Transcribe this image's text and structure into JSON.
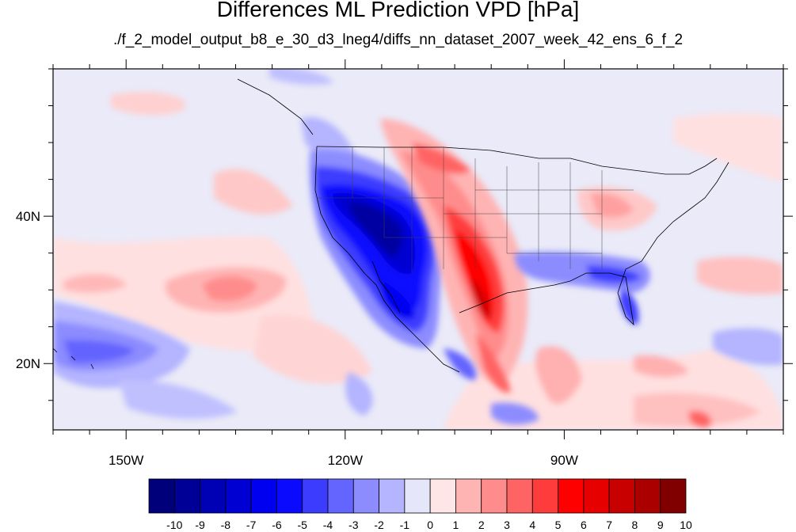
{
  "title": "Differences ML Prediction VPD [hPa]",
  "subtitle": "./f_2_model_output_b8_e_30_d3_lneg4/diffs_nn_dataset_2007_week_42_ens_6_f_2",
  "map": {
    "lon_range": [
      -160,
      -60
    ],
    "lat_range": [
      11,
      60
    ],
    "lon_ticks": [
      {
        "value": -150,
        "label": "150W"
      },
      {
        "value": -120,
        "label": "120W"
      },
      {
        "value": -90,
        "label": "90W"
      }
    ],
    "lat_ticks": [
      {
        "value": 40,
        "label": "40N"
      },
      {
        "value": 20,
        "label": "20N"
      }
    ],
    "background_color": "#eaeaf8"
  },
  "colorbar": {
    "labels": [
      "-10",
      "-9",
      "-8",
      "-7",
      "-6",
      "-5",
      "-4",
      "-3",
      "-2",
      "-1",
      "0",
      "1",
      "2",
      "3",
      "4",
      "5",
      "6",
      "7",
      "8",
      "9",
      "10"
    ],
    "colors": [
      "#00007a",
      "#000096",
      "#0000b4",
      "#0000d2",
      "#0000f0",
      "#0a0aff",
      "#3c3cff",
      "#6464ff",
      "#8c8cff",
      "#b4b4ff",
      "#e6e6fa",
      "#ffe6e6",
      "#ffb4b4",
      "#ff8c8c",
      "#ff6464",
      "#ff3c3c",
      "#ff0000",
      "#e60000",
      "#c80000",
      "#aa0000",
      "#800000"
    ]
  }
}
